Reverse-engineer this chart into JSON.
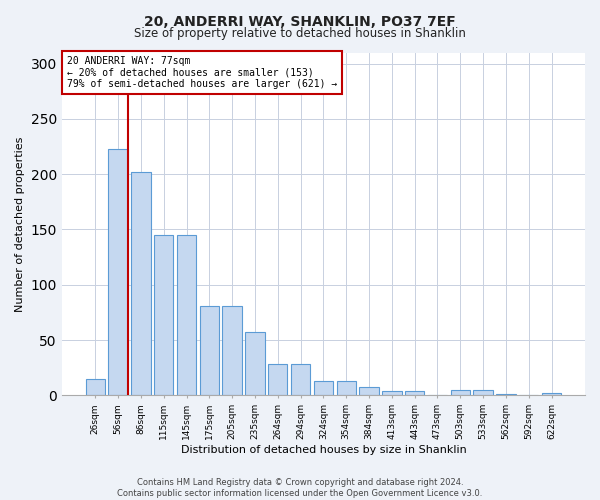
{
  "title1": "20, ANDERRI WAY, SHANKLIN, PO37 7EF",
  "title2": "Size of property relative to detached houses in Shanklin",
  "xlabel": "Distribution of detached houses by size in Shanklin",
  "ylabel": "Number of detached properties",
  "bar_labels": [
    "26sqm",
    "56sqm",
    "86sqm",
    "115sqm",
    "145sqm",
    "175sqm",
    "205sqm",
    "235sqm",
    "264sqm",
    "294sqm",
    "324sqm",
    "354sqm",
    "384sqm",
    "413sqm",
    "443sqm",
    "473sqm",
    "503sqm",
    "533sqm",
    "562sqm",
    "592sqm",
    "622sqm"
  ],
  "bar_values": [
    15,
    223,
    202,
    145,
    145,
    81,
    81,
    57,
    28,
    28,
    13,
    13,
    8,
    4,
    4,
    0,
    5,
    5,
    1,
    0,
    2
  ],
  "bar_color": "#c5d8f0",
  "bar_edge_color": "#5b9bd5",
  "highlight_bar_index": 1,
  "highlight_line_color": "#c00000",
  "annotation_line1": "20 ANDERRI WAY: 77sqm",
  "annotation_line2": "← 20% of detached houses are smaller (153)",
  "annotation_line3": "79% of semi-detached houses are larger (621) →",
  "annotation_box_color": "#ffffff",
  "annotation_box_edge": "#c00000",
  "ylim": [
    0,
    310
  ],
  "yticks": [
    0,
    50,
    100,
    150,
    200,
    250,
    300
  ],
  "footer": "Contains HM Land Registry data © Crown copyright and database right 2024.\nContains public sector information licensed under the Open Government Licence v3.0.",
  "bg_color": "#eef2f8",
  "plot_bg_color": "#ffffff",
  "grid_color": "#c8d0e0"
}
